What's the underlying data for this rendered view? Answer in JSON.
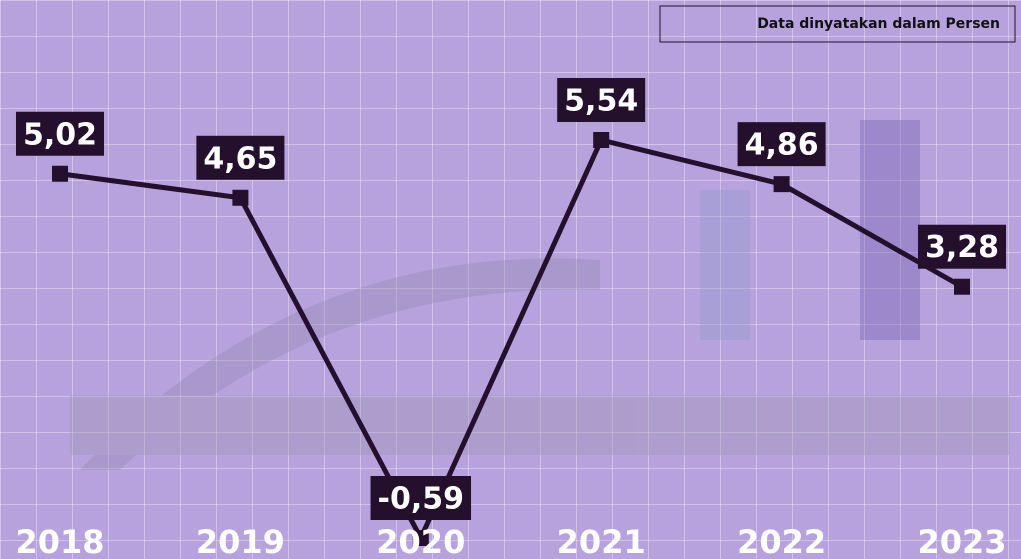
{
  "chart_data": {
    "type": "line",
    "annotation": "Data dinyatakan dalam Persen",
    "categories": [
      "2018",
      "2019",
      "2020",
      "2021",
      "2022",
      "2023"
    ],
    "series": [
      {
        "color": "#24102c",
        "values": [
          5.02,
          4.65,
          -0.59,
          5.54,
          4.86,
          3.28
        ],
        "value_labels": [
          "5,02",
          "4,65",
          "-0,59",
          "5,54",
          "4,86",
          "3,28"
        ]
      }
    ]
  }
}
